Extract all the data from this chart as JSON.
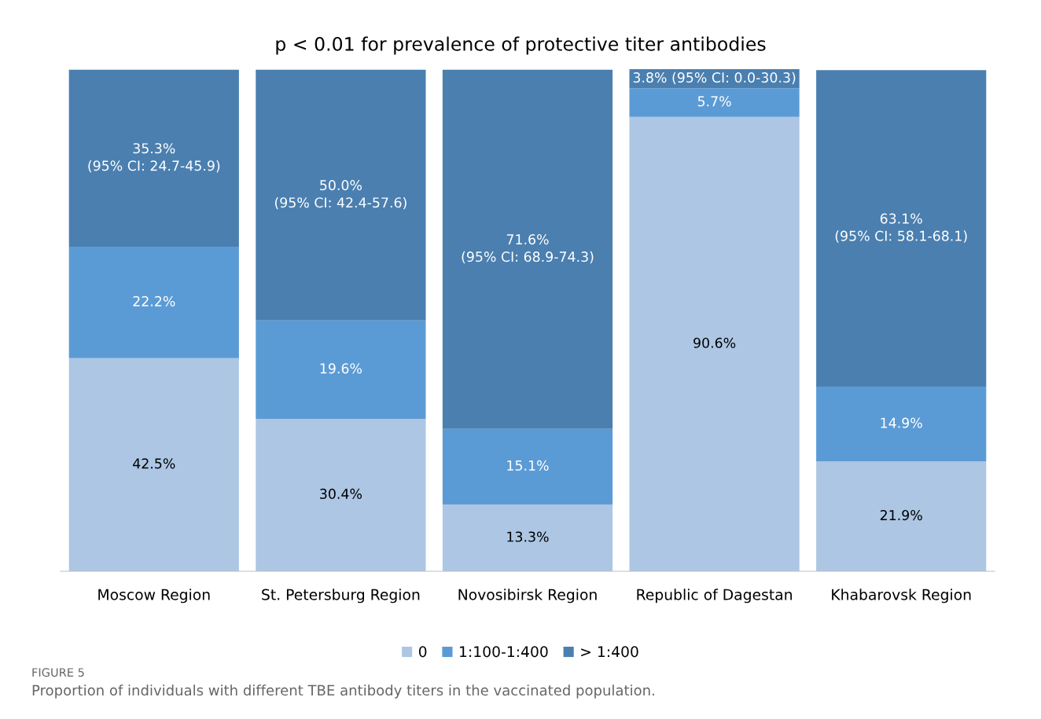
{
  "chart_data": {
    "type": "bar",
    "stacked": true,
    "title": "p < 0.01 for prevalence of protective titer antibodies",
    "categories": [
      "Moscow Region",
      "St. Petersburg Region",
      "Novosibirsk Region",
      "Republic of Dagestan",
      "Khabarovsk Region"
    ],
    "series": [
      {
        "name": "0",
        "color": "#adc6e4",
        "values": [
          42.5,
          30.4,
          13.3,
          90.6,
          21.9
        ],
        "value_labels": [
          "42.5%",
          "30.4%",
          "13.3%",
          "90.6%",
          "21.9%"
        ]
      },
      {
        "name": "1:100-1:400",
        "color": "#5b9bd5",
        "values": [
          22.2,
          19.6,
          15.1,
          5.7,
          14.9
        ],
        "value_labels": [
          "22.2%",
          "19.6%",
          "15.1%",
          "5.7%",
          "14.9%"
        ]
      },
      {
        "name": "> 1:400",
        "color": "#4a7fb0",
        "values": [
          35.3,
          50.0,
          71.6,
          3.8,
          63.1
        ],
        "value_labels": [
          "35.3%\n(95% CI: 24.7-45.9)",
          "50.0%\n(95% CI: 42.4-57.6)",
          "71.6%\n(95% CI: 68.9-74.3)",
          "3.8% (95% CI: 0.0-30.3)",
          "63.1%\n(95% CI: 58.1-68.1)"
        ]
      }
    ],
    "legend": "bottom",
    "grid": false,
    "annotations": [
      "FIGURE 5",
      "Proportion of individuals with different TBE antibody titers in the vaccinated population."
    ]
  }
}
